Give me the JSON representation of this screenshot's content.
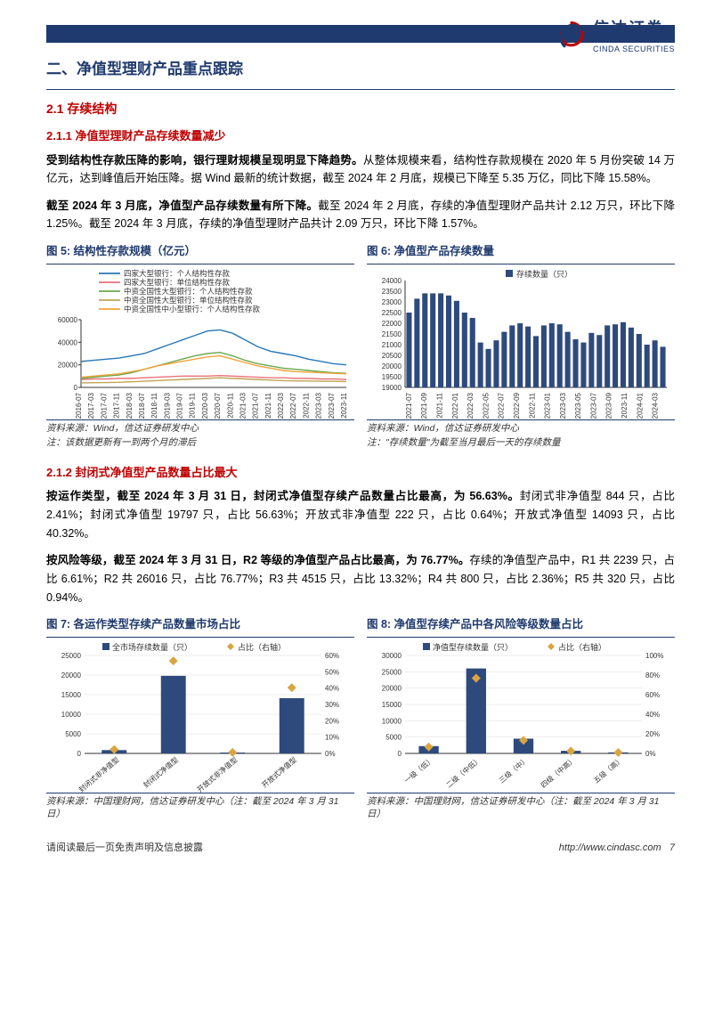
{
  "logo": {
    "cn": "信达证券",
    "en": "CINDA SECURITIES"
  },
  "section_title": "二、净值型理财产品重点跟踪",
  "sub_2_1": "2.1 存续结构",
  "sub_2_1_1": "2.1.1 净值型理财产品存续数量减少",
  "para1_bold": "受到结构性存款压降的影响，银行理财规模呈现明显下降趋势。",
  "para1_rest": "从整体规模来看，结构性存款规模在 2020 年 5 月份突破 14 万亿元，达到峰值后开始压降。据 Wind 最新的统计数据，截至 2024 年 2 月底，规模已下降至 5.35 万亿，同比下降 15.58%。",
  "para2_bold": "截至 2024 年 3 月底，净值型产品存续数量有所下降。",
  "para2_rest": "截至 2024 年 2 月底，存续的净值型理财产品共计 2.12 万只，环比下降 1.25%。截至 2024 年 3 月底，存续的净值型理财产品共计 2.09 万只，环比下降 1.57%。",
  "fig5_title": "图 5:  结构性存款规模（亿元）",
  "fig5": {
    "type": "line",
    "legend": [
      "四家大型银行：个人结构性存款",
      "四家大型银行：单位结构性存款",
      "中资全国性大型银行：个人结构性存款",
      "中资全国性大型银行：单位结构性存款",
      "中资全国性中小型银行：个人结构性存款"
    ],
    "legend_colors": [
      "#2878b5",
      "#e8737a",
      "#6aa84f",
      "#bfa554",
      "#f2a23c"
    ],
    "xlabels": [
      "2016-07",
      "2017-03",
      "2017-07",
      "2017-11",
      "2018-03",
      "2018-07",
      "2018-11",
      "2019-03",
      "2019-07",
      "2019-11",
      "2020-03",
      "2020-07",
      "2020-11",
      "2021-03",
      "2021-07",
      "2021-11",
      "2022-03",
      "2022-07",
      "2022-11",
      "2023-03",
      "2023-07",
      "2023-11"
    ],
    "ylim": [
      0,
      60000
    ],
    "ytick_step": 20000,
    "series": [
      [
        23000,
        24000,
        25000,
        26000,
        28000,
        30000,
        34000,
        38000,
        42000,
        46000,
        50000,
        51000,
        48000,
        42000,
        36000,
        32000,
        30000,
        28000,
        25000,
        23000,
        21000,
        20000
      ],
      [
        7000,
        7500,
        7500,
        8000,
        8000,
        8500,
        9000,
        9500,
        10000,
        10000,
        10000,
        10500,
        10000,
        9500,
        9000,
        8500,
        8500,
        8000,
        8000,
        7500,
        7500,
        7000
      ],
      [
        8000,
        9000,
        10000,
        11000,
        13000,
        16000,
        19000,
        22000,
        25000,
        28000,
        30000,
        31000,
        28000,
        24000,
        21000,
        19000,
        17000,
        16000,
        15000,
        14000,
        13000,
        12500
      ],
      [
        4000,
        4200,
        4300,
        4500,
        5000,
        5500,
        6000,
        6500,
        7000,
        7500,
        8000,
        8500,
        8000,
        7500,
        7000,
        6500,
        6000,
        5800,
        5700,
        5500,
        5400,
        5200
      ],
      [
        9000,
        10000,
        11000,
        12000,
        14000,
        16000,
        19000,
        21000,
        23000,
        25000,
        27000,
        28000,
        25000,
        22000,
        19000,
        17000,
        15000,
        14000,
        13500,
        13000,
        12500,
        12000
      ]
    ],
    "axis_fontsize": 8,
    "legend_fontsize": 8.5
  },
  "fig5_source": "资料来源：Wind，信达证券研发中心",
  "fig5_note": "注：该数据更新有一到两个月的滞后",
  "fig6_title": "图 6:  净值型产品存续数量",
  "fig6": {
    "type": "bar",
    "legend": [
      "存续数量（只）"
    ],
    "bar_color": "#2e4a7d",
    "xlabels": [
      "2021-07",
      "2021-09",
      "2021-11",
      "2022-01",
      "2022-03",
      "2022-05",
      "2022-07",
      "2022-09",
      "2022-11",
      "2023-01",
      "2023-03",
      "2023-05",
      "2023-07",
      "2023-09",
      "2023-11",
      "2024-01",
      "2024-03"
    ],
    "ylim": [
      19000,
      24000
    ],
    "ytick_step": 500,
    "values": [
      22500,
      23150,
      23400,
      23400,
      23400,
      23300,
      23050,
      22500,
      22250,
      21100,
      20800,
      21200,
      21600,
      21900,
      22000,
      21850,
      21400,
      21900,
      22000,
      21950,
      21600,
      21250,
      21100,
      21550,
      21450,
      21900,
      21950,
      22050,
      21800,
      21500,
      21000,
      21200,
      20900
    ],
    "axis_fontsize": 8
  },
  "fig6_source": "资料来源：Wind，信达证券研发中心",
  "fig6_note": "注：\"存续数量\"为截至当月最后一天的存续数量",
  "sub_2_1_2": "2.1.2 封闭式净值型产品数量占比最大",
  "para3_bold": "按运作类型，截至 2024 年 3 月 31 日，封闭式净值型存续产品数量占比最高，为 56.63%。",
  "para3_rest": "封闭式非净值型 844 只，占比 2.41%；封闭式净值型 19797 只，占比 56.63%；开放式非净值型 222 只，占比 0.64%；开放式净值型 14093 只，占比 40.32%。",
  "para4_bold": "按风险等级，截至 2024 年 3 月 31 日，R2 等级的净值型产品占比最高，为 76.77%。",
  "para4_rest": "存续的净值型产品中，R1 共 2239 只，占比 6.61%；R2 共 26016 只，占比 76.77%；R3 共 4515 只，占比 13.32%；R4 共 800 只，占比 2.36%；R5 共 320 只，占比 0.94%。",
  "fig7_title": "图 7:  各运作类型存续产品数量市场占比",
  "fig7": {
    "type": "bar+scatter",
    "bar_color": "#2e4a7d",
    "marker_color": "#d9a441",
    "categories": [
      "封闭式非净值型",
      "封闭式净值型",
      "开放式非净值型",
      "开放式净值型"
    ],
    "bar_legend": "全市场存续数量（只）",
    "scatter_legend": "占比（右轴）",
    "bar_values": [
      844,
      19797,
      222,
      14093
    ],
    "pct_values": [
      2.41,
      56.63,
      0.64,
      40.32
    ],
    "y1lim": [
      0,
      25000
    ],
    "y1tick_step": 5000,
    "y2lim": [
      0,
      60
    ],
    "y2tick_step": 10,
    "axis_fontsize": 8
  },
  "fig7_source": "资料来源：中国理财网，信达证券研发中心（注：截至 2024 年 3 月 31 日）",
  "fig8_title": "图 8:  净值型存续产品中各风险等级数量占比",
  "fig8": {
    "type": "bar+scatter",
    "bar_color": "#2e4a7d",
    "marker_color": "#d9a441",
    "categories": [
      "一级（低）",
      "二级（中低）",
      "三级（中）",
      "四级（中高）",
      "五级（高）"
    ],
    "bar_legend": "净值型存续数量（只）",
    "scatter_legend": "占比（右轴）",
    "bar_values": [
      2239,
      26016,
      4515,
      800,
      320
    ],
    "pct_values": [
      6.61,
      76.77,
      13.32,
      2.36,
      0.94
    ],
    "y1lim": [
      0,
      30000
    ],
    "y1tick_step": 5000,
    "y2lim": [
      0,
      100
    ],
    "y2tick_step": 20,
    "axis_fontsize": 8
  },
  "fig8_source": "资料来源：中国理财网，信达证券研发中心（注：截至 2024 年 3 月 31 日）",
  "footer_left": "请阅读最后一页免责声明及信息披露",
  "footer_url": "http://www.cindasc.com",
  "footer_page": "7"
}
